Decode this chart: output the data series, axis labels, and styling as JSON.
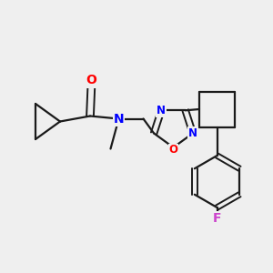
{
  "background_color": "#efefef",
  "bond_color": "#1a1a1a",
  "atom_colors": {
    "O": "#ff0000",
    "N": "#0000ff",
    "F": "#cc44cc"
  },
  "figsize": [
    3.0,
    3.0
  ],
  "dpi": 100
}
